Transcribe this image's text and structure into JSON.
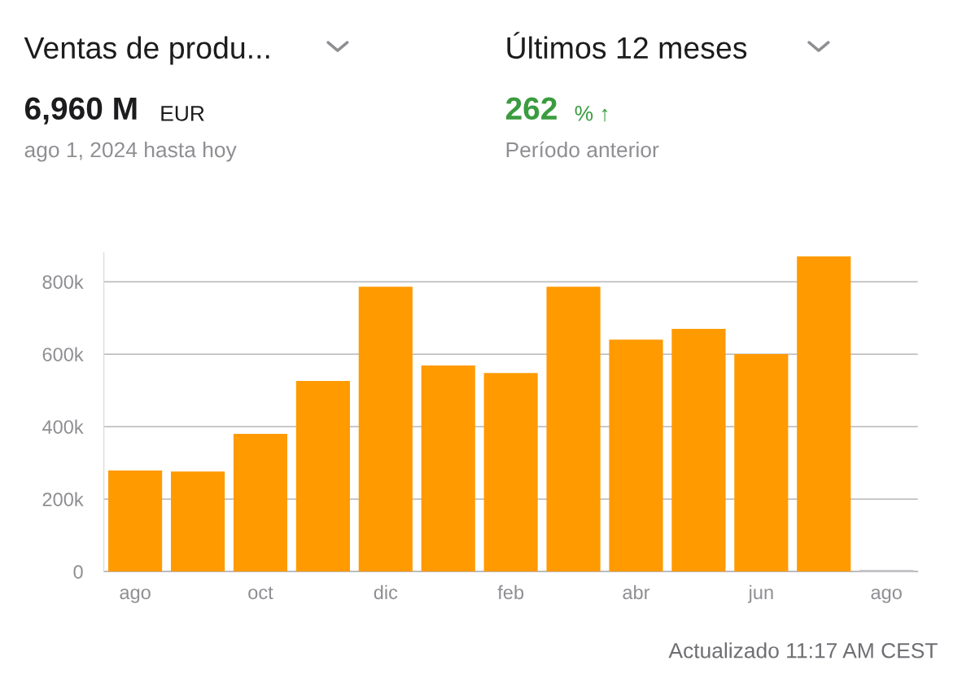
{
  "chart_data": {
    "type": "bar",
    "title": "Ventas de produ...",
    "annotations": [
      "6,960 M",
      "EUR",
      "ago 1, 2024 hasta hoy",
      "Últimos 12 meses",
      "262",
      "% ↑",
      "Período anterior",
      "Actualizado 11:17 AM CEST"
    ],
    "categories": [
      "ago",
      null,
      "oct",
      null,
      "dic",
      null,
      "feb",
      null,
      "abr",
      null,
      "jun",
      null,
      "ago"
    ],
    "values": [
      279000,
      276000,
      380000,
      526000,
      786000,
      569000,
      548000,
      786000,
      640000,
      670000,
      600000,
      870000,
      5000
    ],
    "colors": [
      "#ff9a00",
      "#ff9a00",
      "#ff9a00",
      "#ff9a00",
      "#ff9a00",
      "#ff9a00",
      "#ff9a00",
      "#ff9a00",
      "#ff9a00",
      "#ff9a00",
      "#ff9a00",
      "#ff9a00",
      "#c8c8cc"
    ],
    "ylim": [
      0,
      880000
    ],
    "yticks": [
      0,
      {
        "value": 200000,
        "label": "200k"
      },
      {
        "value": 400000,
        "label": "400k"
      },
      {
        "value": 600000,
        "label": "600k"
      },
      {
        "value": 800000,
        "label": "800k"
      }
    ],
    "grid": "y"
  }
}
